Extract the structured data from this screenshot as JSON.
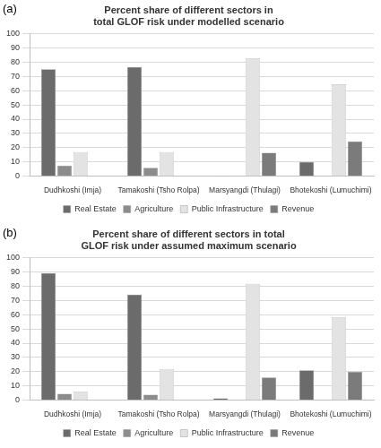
{
  "chart_data": [
    {
      "type": "bar",
      "panel": "(a)",
      "title": "Percent share of different sectors in total GLOF risk under modelled scenario",
      "categories": [
        "Dudhkoshi (Imja)",
        "Tamakoshi (Tsho Rolpa)",
        "Marsyangdi (Thulagi)",
        "Bhotekoshi (Lumuchimi)"
      ],
      "series": [
        {
          "name": "Real Estate",
          "color": "#6b6b6b",
          "values": [
            75,
            76.5,
            0.5,
            10
          ]
        },
        {
          "name": "Agriculture",
          "color": "#8c8c8c",
          "values": [
            7.5,
            6,
            0.3,
            0.3
          ]
        },
        {
          "name": "Public Infrastructure",
          "color": "#e3e3e3",
          "values": [
            17,
            17,
            82.5,
            64.5
          ]
        },
        {
          "name": "Revenue",
          "color": "#7b7b7b",
          "values": [
            0.3,
            0,
            16.5,
            24.5
          ]
        }
      ],
      "ylim": [
        0,
        100
      ],
      "yticks": [
        0,
        10,
        20,
        30,
        40,
        50,
        60,
        70,
        80,
        90,
        100
      ],
      "grid": true,
      "legend": "bottom"
    },
    {
      "type": "bar",
      "panel": "(b)",
      "title": "Percent share of different sectors in total GLOF risk under assumed maximum scenario",
      "categories": [
        "Dudhkoshi (Imja)",
        "Tamakoshi (Tsho Rolpa)",
        "Marsyangdi (Thulagi)",
        "Bhotekoshi (Lumuchimi)"
      ],
      "series": [
        {
          "name": "Real Estate",
          "color": "#6b6b6b",
          "values": [
            89,
            74,
            1.5,
            21
          ]
        },
        {
          "name": "Agriculture",
          "color": "#8c8c8c",
          "values": [
            4.5,
            4,
            0.3,
            0.5
          ]
        },
        {
          "name": "Public Infrastructure",
          "color": "#e3e3e3",
          "values": [
            6,
            22,
            81.5,
            58
          ]
        },
        {
          "name": "Revenue",
          "color": "#7b7b7b",
          "values": [
            0.3,
            0,
            16,
            20
          ]
        }
      ],
      "ylim": [
        0,
        100
      ],
      "yticks": [
        0,
        10,
        20,
        30,
        40,
        50,
        60,
        70,
        80,
        90,
        100
      ],
      "grid": true,
      "legend": "bottom"
    }
  ]
}
